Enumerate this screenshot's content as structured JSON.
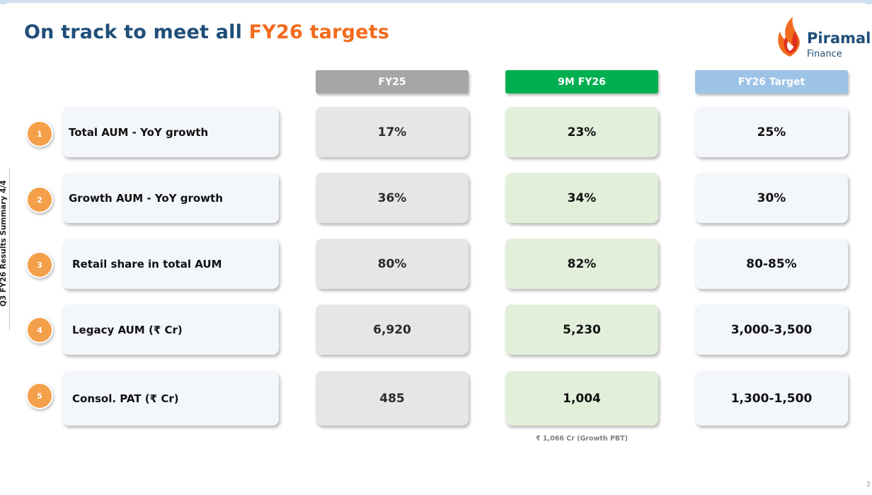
{
  "header": {
    "title_main": "On track to meet all ",
    "title_accent": "FY26 targets",
    "side_label": "Q3 FY26 Results Summary 4/4"
  },
  "logo": {
    "name": "Piramal",
    "sub": "Finance",
    "icon": "piramal-flame-icon"
  },
  "colors": {
    "navy": "#1f4e79",
    "orange": "#f26b1d",
    "fy25": "#a6a6a6",
    "nine_m": "#00b050",
    "target": "#9dc3e6"
  },
  "columns": [
    "FY25",
    "9M FY26",
    "FY26 Target"
  ],
  "rows": [
    {
      "num": "1",
      "label": "Total AUM - YoY growth",
      "fy25": "17%",
      "nine_m": "23%",
      "target": "25%"
    },
    {
      "num": "2",
      "label": "Growth AUM - YoY growth",
      "fy25": "36%",
      "nine_m": "34%",
      "target": "30%"
    },
    {
      "num": "3",
      "label": "Retail share in total AUM",
      "fy25": "80%",
      "nine_m": "82%",
      "target": "80-85%"
    },
    {
      "num": "4",
      "label": "Legacy AUM (₹ Cr)",
      "fy25": "6,920",
      "nine_m": "5,230",
      "target": "3,000-3,500"
    },
    {
      "num": "5",
      "label": "Consol. PAT (₹ Cr)",
      "fy25": "485",
      "nine_m": "1,004",
      "target": "1,300-1,500"
    }
  ],
  "footnote": "₹ 1,066 Cr (Growth PBT)",
  "page_number": "2"
}
